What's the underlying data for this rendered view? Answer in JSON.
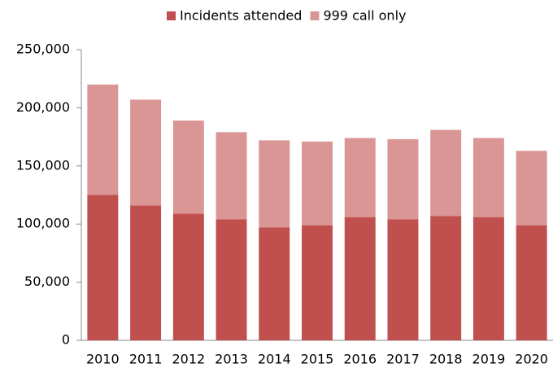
{
  "chart_data": {
    "type": "stacked-bar",
    "categories": [
      "2010",
      "2011",
      "2012",
      "2013",
      "2014",
      "2015",
      "2016",
      "2017",
      "2018",
      "2019",
      "2020"
    ],
    "series": [
      {
        "name": "Incidents attended",
        "color": "#c0504d",
        "values": [
          125000,
          116000,
          109000,
          104000,
          97000,
          99000,
          106000,
          104000,
          107000,
          106000,
          99000
        ]
      },
      {
        "name": "999 call only",
        "color": "#d99694",
        "values": [
          95000,
          91000,
          80000,
          75000,
          75000,
          72000,
          68000,
          69000,
          74000,
          68000,
          64000
        ]
      }
    ],
    "ylim": [
      0,
      250000
    ],
    "yticks": [
      0,
      {
        "value": 50000,
        "label": "50,000"
      },
      {
        "value": 100000,
        "label": "100,000"
      },
      {
        "value": 150000,
        "label": "150,000"
      },
      {
        "value": 200000,
        "label": "200,000"
      },
      {
        "value": 250000,
        "label": "250,000"
      }
    ],
    "legend": "top"
  }
}
